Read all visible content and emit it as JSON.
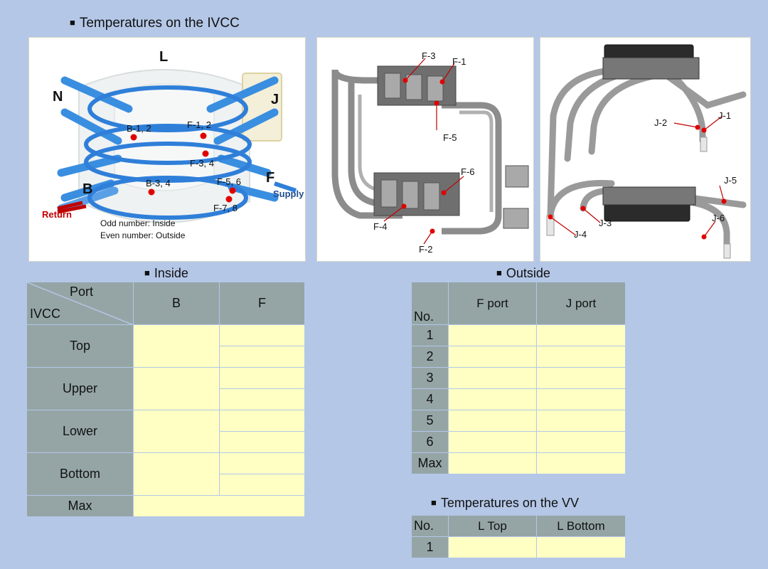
{
  "titles": {
    "ivcc": "Temperatures on the IVCC",
    "inside": "Inside",
    "outside": "Outside",
    "vv": "Temperatures on the VV"
  },
  "diagram1": {
    "coils": [
      "L",
      "N",
      "J",
      "B",
      "F"
    ],
    "points": [
      "B-1, 2",
      "F-1, 2",
      "F-3, 4",
      "B-3, 4",
      "F-5, 6",
      "F-7, 8"
    ],
    "supply": "Supply",
    "return": "Return",
    "note1": "Odd number: Inside",
    "note2": "Even number: Outside"
  },
  "diagram2": {
    "labels": [
      "F-3",
      "F-1",
      "F-5",
      "F-6",
      "F-4",
      "F-2"
    ]
  },
  "diagram3": {
    "labels": [
      "J-2",
      "J-1",
      "J-5",
      "J-3",
      "J-4",
      "J-6"
    ]
  },
  "inside_table": {
    "corner_port": "Port",
    "corner_ivcc": "IVCC",
    "columns": [
      "B",
      "F"
    ],
    "rows": [
      "Top",
      "Upper",
      "Lower",
      "Bottom"
    ],
    "max": "Max"
  },
  "outside_table": {
    "no": "No.",
    "columns": [
      "F port",
      "J port"
    ],
    "rows": [
      "1",
      "2",
      "3",
      "4",
      "5",
      "6"
    ],
    "max": "Max"
  },
  "vv_table": {
    "no": "No.",
    "columns": [
      "L Top",
      "L Bottom"
    ],
    "rows": [
      "1"
    ]
  },
  "colors": {
    "background": "#b4c7e7",
    "header": "#95a5a6",
    "cell": "#ffffc4",
    "coil": "#2f7fd9",
    "marker": "#e00000"
  }
}
